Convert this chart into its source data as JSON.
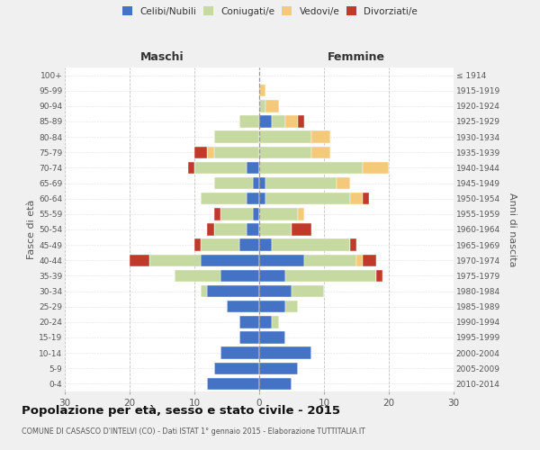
{
  "age_groups": [
    "0-4",
    "5-9",
    "10-14",
    "15-19",
    "20-24",
    "25-29",
    "30-34",
    "35-39",
    "40-44",
    "45-49",
    "50-54",
    "55-59",
    "60-64",
    "65-69",
    "70-74",
    "75-79",
    "80-84",
    "85-89",
    "90-94",
    "95-99",
    "100+"
  ],
  "birth_years": [
    "2010-2014",
    "2005-2009",
    "2000-2004",
    "1995-1999",
    "1990-1994",
    "1985-1989",
    "1980-1984",
    "1975-1979",
    "1970-1974",
    "1965-1969",
    "1960-1964",
    "1955-1959",
    "1950-1954",
    "1945-1949",
    "1940-1944",
    "1935-1939",
    "1930-1934",
    "1925-1929",
    "1920-1924",
    "1915-1919",
    "≤ 1914"
  ],
  "males": {
    "celibi": [
      8,
      7,
      6,
      3,
      3,
      5,
      8,
      6,
      9,
      3,
      2,
      1,
      2,
      1,
      2,
      0,
      0,
      0,
      0,
      0,
      0
    ],
    "coniugati": [
      0,
      0,
      0,
      0,
      0,
      0,
      1,
      7,
      8,
      6,
      5,
      5,
      7,
      6,
      8,
      7,
      7,
      3,
      0,
      0,
      0
    ],
    "vedovi": [
      0,
      0,
      0,
      0,
      0,
      0,
      0,
      0,
      0,
      0,
      0,
      0,
      0,
      0,
      0,
      1,
      0,
      0,
      0,
      0,
      0
    ],
    "divorziati": [
      0,
      0,
      0,
      0,
      0,
      0,
      0,
      0,
      3,
      1,
      1,
      1,
      0,
      0,
      1,
      2,
      0,
      0,
      0,
      0,
      0
    ]
  },
  "females": {
    "nubili": [
      5,
      6,
      8,
      4,
      2,
      4,
      5,
      4,
      7,
      2,
      0,
      0,
      1,
      1,
      0,
      0,
      0,
      2,
      0,
      0,
      0
    ],
    "coniugate": [
      0,
      0,
      0,
      0,
      1,
      2,
      5,
      14,
      8,
      12,
      5,
      6,
      13,
      11,
      16,
      8,
      8,
      2,
      1,
      0,
      0
    ],
    "vedove": [
      0,
      0,
      0,
      0,
      0,
      0,
      0,
      0,
      1,
      0,
      0,
      1,
      2,
      2,
      4,
      3,
      3,
      2,
      2,
      1,
      0
    ],
    "divorziate": [
      0,
      0,
      0,
      0,
      0,
      0,
      0,
      1,
      2,
      1,
      3,
      0,
      1,
      0,
      0,
      0,
      0,
      1,
      0,
      0,
      0
    ]
  },
  "colors": {
    "celibi_nubili": "#4472c4",
    "coniugati": "#c5d9a0",
    "vedovi": "#f5c97a",
    "divorziati": "#c0392b"
  },
  "xlim": 30,
  "title": "Popolazione per età, sesso e stato civile - 2015",
  "subtitle": "COMUNE DI CASASCO D'INTELVI (CO) - Dati ISTAT 1° gennaio 2015 - Elaborazione TUTTITALIA.IT",
  "ylabel_left": "Fasce di età",
  "ylabel_right": "Anni di nascita",
  "xlabel_left": "Maschi",
  "xlabel_right": "Femmine",
  "bg_color": "#f0f0f0",
  "plot_bg": "#ffffff"
}
